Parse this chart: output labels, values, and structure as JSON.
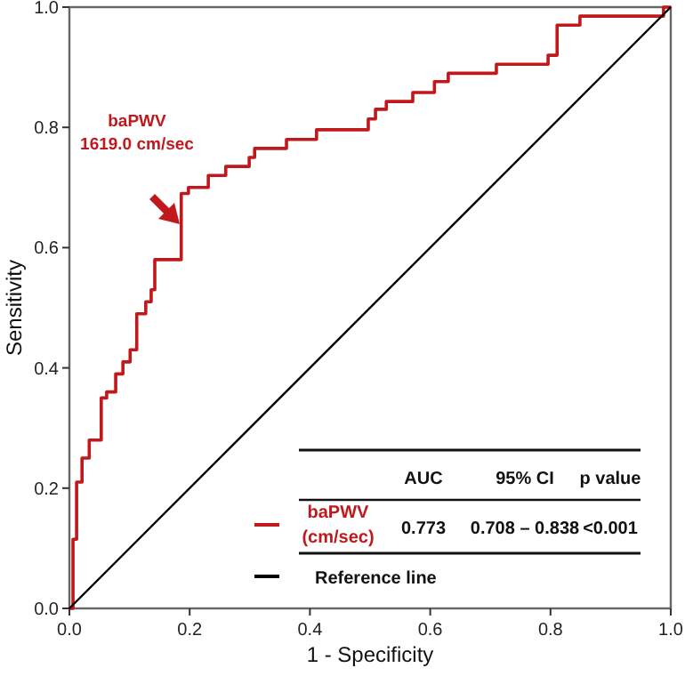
{
  "chart_data": {
    "type": "line",
    "xlabel": "1 - Specificity",
    "ylabel": "Sensitivity",
    "xlim": [
      0,
      1
    ],
    "ylim": [
      0,
      1
    ],
    "xticks": [
      {
        "value": 0,
        "label": "0.0"
      },
      {
        "value": 0.2,
        "label": "0.2"
      },
      {
        "value": 0.4,
        "label": "0.4"
      },
      {
        "value": 0.6,
        "label": "0.6"
      },
      {
        "value": 0.8,
        "label": "0.8"
      },
      {
        "value": 1,
        "label": "1.0"
      }
    ],
    "yticks": [
      {
        "value": 0,
        "label": "0.0"
      },
      {
        "value": 0.2,
        "label": "0.2"
      },
      {
        "value": 0.4,
        "label": "0.4"
      },
      {
        "value": 0.6,
        "label": "0.6"
      },
      {
        "value": 0.8,
        "label": "0.8"
      },
      {
        "value": 1,
        "label": "1.0"
      }
    ],
    "series": [
      {
        "name": "baPWV\n(cm/sec)",
        "color": "#c0181c",
        "x": [
          0,
          0.006,
          0.006,
          0.012,
          0.012,
          0.021,
          0.021,
          0.033,
          0.033,
          0.053,
          0.053,
          0.062,
          0.062,
          0.077,
          0.077,
          0.089,
          0.089,
          0.101,
          0.101,
          0.112,
          0.112,
          0.127,
          0.127,
          0.136,
          0.136,
          0.142,
          0.142,
          0.186,
          0.186,
          0.198,
          0.198,
          0.231,
          0.231,
          0.26,
          0.26,
          0.299,
          0.299,
          0.308,
          0.308,
          0.361,
          0.361,
          0.411,
          0.411,
          0.497,
          0.497,
          0.509,
          0.509,
          0.527,
          0.527,
          0.571,
          0.571,
          0.607,
          0.607,
          0.63,
          0.63,
          0.71,
          0.71,
          0.796,
          0.796,
          0.811,
          0.811,
          0.849,
          0.849,
          0.988,
          0.988,
          1
        ],
        "values": [
          0,
          0,
          0.115,
          0.115,
          0.21,
          0.21,
          0.25,
          0.25,
          0.28,
          0.28,
          0.35,
          0.35,
          0.36,
          0.36,
          0.39,
          0.39,
          0.41,
          0.41,
          0.43,
          0.43,
          0.49,
          0.49,
          0.51,
          0.51,
          0.53,
          0.53,
          0.58,
          0.58,
          0.69,
          0.69,
          0.7,
          0.7,
          0.72,
          0.72,
          0.735,
          0.735,
          0.75,
          0.75,
          0.765,
          0.765,
          0.78,
          0.78,
          0.796,
          0.796,
          0.814,
          0.814,
          0.83,
          0.83,
          0.843,
          0.843,
          0.858,
          0.858,
          0.876,
          0.876,
          0.89,
          0.89,
          0.905,
          0.905,
          0.92,
          0.92,
          0.97,
          0.97,
          0.985,
          0.985,
          1,
          1
        ]
      },
      {
        "name": "Reference line",
        "color": "#000000",
        "x": [
          0,
          1
        ],
        "values": [
          0,
          1
        ]
      }
    ],
    "legend": "bottom right",
    "marker": "none",
    "line_style": "solid",
    "grid": false,
    "annotations": [
      "AUC",
      "95% CI",
      "p value",
      "0.773",
      "0.708 – 0.838",
      "<0.001",
      "baPWV\n1619.0 cm/sec"
    ]
  }
}
